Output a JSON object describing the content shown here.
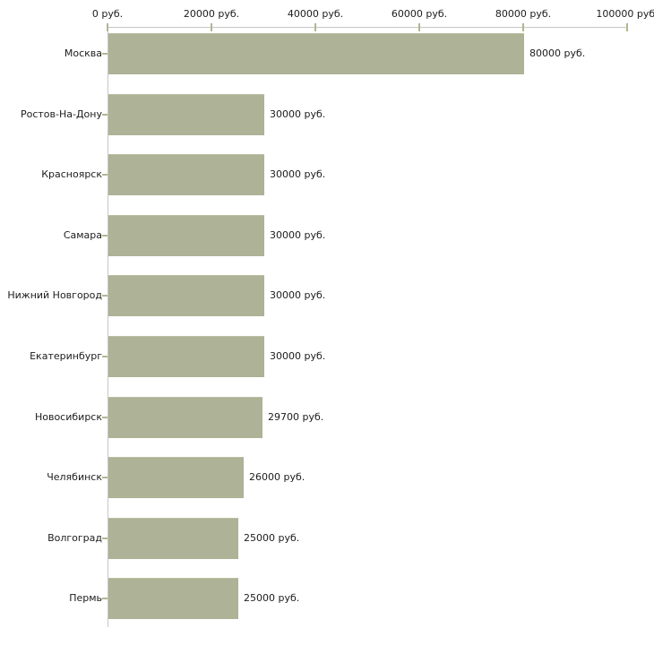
{
  "chart_data": {
    "type": "bar",
    "orientation": "horizontal",
    "title": "",
    "xlabel": "",
    "ylabel": "",
    "unit": "руб.",
    "xlim": [
      0,
      100000
    ],
    "grid": false,
    "legend": null,
    "categories": [
      "Москва",
      "Ростов-На-Дону",
      "Красноярск",
      "Самара",
      "Нижний Новгород",
      "Екатеринбург",
      "Новосибирск",
      "Челябинск",
      "Волгоград",
      "Пермь"
    ],
    "values": [
      80000,
      30000,
      30000,
      30000,
      30000,
      30000,
      29700,
      26000,
      25000,
      25000
    ],
    "value_labels": [
      "80000 руб.",
      "30000 руб.",
      "30000 руб.",
      "30000 руб.",
      "30000 руб.",
      "30000 руб.",
      "29700 руб.",
      "26000 руб.",
      "25000 руб.",
      "25000 руб."
    ],
    "x_tick_values": [
      0,
      20000,
      40000,
      60000,
      80000,
      100000
    ],
    "x_tick_labels": [
      "0 руб.",
      "20000 руб.",
      "40000 руб.",
      "60000 руб.",
      "80000 руб.",
      "100000 руб."
    ],
    "colors": {
      "bar": "#aeb296",
      "axis": "#c6c6c6",
      "tick": "#b2b692",
      "text": "#1c1c1c",
      "background": "#ffffff"
    }
  }
}
